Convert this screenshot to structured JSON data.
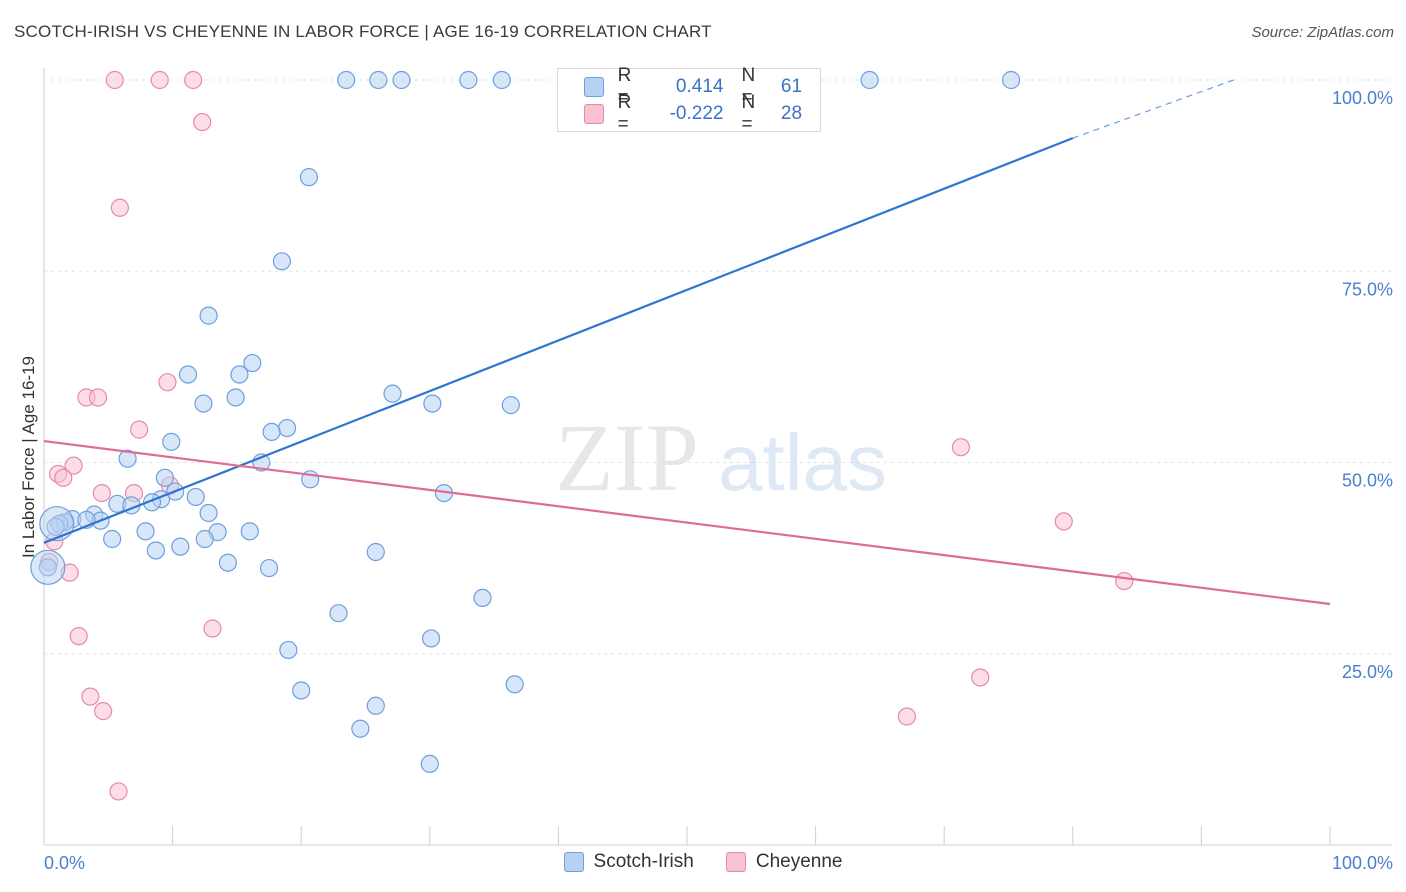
{
  "header": {
    "title": "SCOTCH-IRISH VS CHEYENNE IN LABOR FORCE | AGE 16-19 CORRELATION CHART",
    "source": "Source: ZipAtlas.com"
  },
  "legend": {
    "r_label": "R =",
    "n_label": "N =",
    "series": [
      {
        "name": "Scotch-Irish",
        "r": "0.414",
        "n": "61"
      },
      {
        "name": "Cheyenne",
        "r": "-0.222",
        "n": "28"
      }
    ]
  },
  "watermark": {
    "zip": "ZIP",
    "atlas": "atlas"
  },
  "colors": {
    "blue_fill": "#b7d1f2",
    "blue_stroke": "#6f9fde",
    "blue_line": "#2e74d0",
    "pink_fill": "#f7c3d2",
    "pink_stroke": "#e88aa6",
    "pink_line": "#e06b96",
    "tick_text": "#4a7fcc",
    "grid": "#e3e3e3"
  },
  "chart_data": {
    "type": "scatter",
    "title": "SCOTCH-IRISH VS CHEYENNE IN LABOR FORCE | AGE 16-19 CORRELATION CHART",
    "xlabel": "",
    "ylabel": "In Labor Force | Age 16-19",
    "xlim": [
      0,
      100
    ],
    "ylim": [
      0,
      100
    ],
    "x_tick_labels": [
      "0.0%",
      "100.0%"
    ],
    "y_ticks": [
      {
        "value": 25,
        "label": "25.0%"
      },
      {
        "value": 50,
        "label": "50.0%"
      },
      {
        "value": 75,
        "label": "75.0%"
      },
      {
        "value": 100,
        "label": "100.0%"
      }
    ],
    "series": [
      {
        "name": "Scotch-Irish",
        "color": "#6f9fde",
        "trend": {
          "x0": 0,
          "y0": 39.5,
          "x1": 80,
          "y1": 92.4,
          "dashed_to_x": 92.5,
          "dashed_to_y": 100
        },
        "points": [
          [
            23.5,
            100
          ],
          [
            26.0,
            100
          ],
          [
            27.8,
            100
          ],
          [
            33.0,
            100
          ],
          [
            35.6,
            100
          ],
          [
            64.2,
            100
          ],
          [
            75.2,
            100
          ],
          [
            20.6,
            87.3
          ],
          [
            18.5,
            76.3
          ],
          [
            12.8,
            69.2
          ],
          [
            16.2,
            63.0
          ],
          [
            11.2,
            61.5
          ],
          [
            15.2,
            61.5
          ],
          [
            14.9,
            58.5
          ],
          [
            12.4,
            57.7
          ],
          [
            27.1,
            59.0
          ],
          [
            30.2,
            57.7
          ],
          [
            36.3,
            57.5
          ],
          [
            18.9,
            54.5
          ],
          [
            17.7,
            54.0
          ],
          [
            9.9,
            52.7
          ],
          [
            6.5,
            50.5
          ],
          [
            16.9,
            50.0
          ],
          [
            9.4,
            48.0
          ],
          [
            20.7,
            47.8
          ],
          [
            10.2,
            46.2
          ],
          [
            11.8,
            45.5
          ],
          [
            31.1,
            46.0
          ],
          [
            9.1,
            45.2
          ],
          [
            8.4,
            44.8
          ],
          [
            5.7,
            44.6
          ],
          [
            6.8,
            44.4
          ],
          [
            3.9,
            43.2
          ],
          [
            12.8,
            43.4
          ],
          [
            2.2,
            42.6
          ],
          [
            4.4,
            42.4
          ],
          [
            3.3,
            42.5
          ],
          [
            1.6,
            42.2
          ],
          [
            1.2,
            42.0
          ],
          [
            0.9,
            41.6
          ],
          [
            7.9,
            41.0
          ],
          [
            13.5,
            40.9
          ],
          [
            16.0,
            41.0
          ],
          [
            5.3,
            40.0
          ],
          [
            12.5,
            40.0
          ],
          [
            10.6,
            39.0
          ],
          [
            8.7,
            38.5
          ],
          [
            25.8,
            38.3
          ],
          [
            14.3,
            36.9
          ],
          [
            17.5,
            36.2
          ],
          [
            0.3,
            36.3
          ],
          [
            34.1,
            32.3
          ],
          [
            22.9,
            30.3
          ],
          [
            30.1,
            27.0
          ],
          [
            19.0,
            25.5
          ],
          [
            20.0,
            20.2
          ],
          [
            36.6,
            21.0
          ],
          [
            25.8,
            18.2
          ],
          [
            24.6,
            15.2
          ],
          [
            30.0,
            10.6
          ]
        ],
        "large_points": [
          [
            1.0,
            42.0
          ],
          [
            0.3,
            36.3
          ]
        ]
      },
      {
        "name": "Cheyenne",
        "color": "#e88aa6",
        "trend": {
          "x0": 0,
          "y0": 52.8,
          "x1": 100,
          "y1": 31.5
        },
        "points": [
          [
            5.5,
            100
          ],
          [
            9.0,
            100
          ],
          [
            11.6,
            100
          ],
          [
            12.3,
            94.5
          ],
          [
            5.9,
            83.3
          ],
          [
            9.6,
            60.5
          ],
          [
            3.3,
            58.5
          ],
          [
            4.2,
            58.5
          ],
          [
            7.4,
            54.3
          ],
          [
            71.3,
            52.0
          ],
          [
            2.3,
            49.6
          ],
          [
            1.1,
            48.5
          ],
          [
            1.5,
            48.0
          ],
          [
            9.8,
            47.0
          ],
          [
            4.5,
            46.0
          ],
          [
            7.0,
            46.0
          ],
          [
            0.8,
            39.7
          ],
          [
            79.3,
            42.3
          ],
          [
            0.4,
            37.0
          ],
          [
            2.0,
            35.6
          ],
          [
            84.0,
            34.5
          ],
          [
            2.7,
            27.3
          ],
          [
            13.1,
            28.3
          ],
          [
            72.8,
            21.9
          ],
          [
            3.6,
            19.4
          ],
          [
            4.6,
            17.5
          ],
          [
            67.1,
            16.8
          ],
          [
            5.8,
            7.0
          ]
        ]
      }
    ]
  }
}
